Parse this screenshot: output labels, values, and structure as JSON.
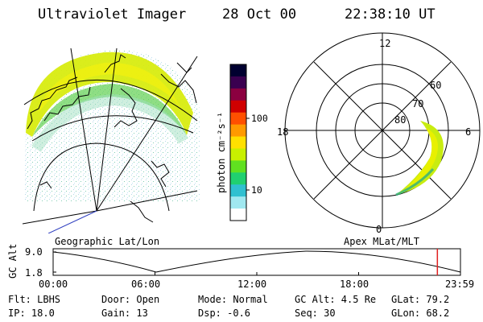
{
  "header": {
    "instrument": "Ultraviolet Imager",
    "date": "28 Oct 00",
    "time": "22:38:10 UT"
  },
  "colorbar": {
    "unit_label": "photon cm⁻²s⁻¹",
    "ticks": [
      "100",
      "10"
    ],
    "colors": [
      "#000030",
      "#3a0050",
      "#8b0040",
      "#d00000",
      "#ff5000",
      "#ff9a00",
      "#ffe000",
      "#c8f000",
      "#60e020",
      "#20d070",
      "#30c0d0",
      "#a0e8f0",
      "#ffffff"
    ]
  },
  "left_panel": {
    "label": "Geographic Lat/Lon"
  },
  "right_panel": {
    "label": "Apex MLat/MLT",
    "mlt_labels": {
      "top": "12",
      "left": "18",
      "right": "6",
      "bottom": "0"
    },
    "mlat_labels": [
      "60",
      "70",
      "80"
    ]
  },
  "timeline": {
    "axis_label": "GC Alt",
    "y_ticks": [
      "9.0",
      "1.8"
    ],
    "x_ticks": [
      "00:00",
      "06:00",
      "12:00",
      "18:00",
      "23:59"
    ],
    "marker_color": "#e02020",
    "marker_time_hours": 22.64
  },
  "info": {
    "filter": "Flt: LBHS",
    "door": "Door: Open",
    "mode": "Mode: Normal",
    "gc_alt": "GC Alt: 4.5 Re",
    "glat": "GLat:  79.2",
    "ip": "IP: 18.0",
    "gain": "Gain: 13",
    "dsp": "Dsp:   -0.6",
    "seq": "Seq: 30",
    "glon": "GLon:  68.2"
  }
}
